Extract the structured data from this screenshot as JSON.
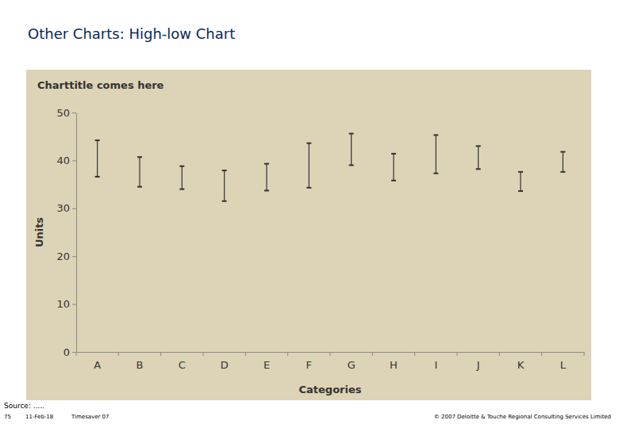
{
  "page": {
    "title": "Other Charts: High-low Chart",
    "source": "Source: .....",
    "page_number": "75",
    "date": "11-Feb-18",
    "series_name": "Timesaver 07",
    "copyright": "© 2007 Deloitte & Touche Regional Consulting Services Limited"
  },
  "chart_data": {
    "type": "high_low",
    "title": "Charttitle comes here",
    "x_label": "Categories",
    "y_label": "Units",
    "categories": [
      "A",
      "B",
      "C",
      "D",
      "E",
      "F",
      "G",
      "H",
      "I",
      "J",
      "K",
      "L"
    ],
    "high": [
      44.2,
      40.7,
      38.8,
      37.9,
      39.3,
      43.6,
      45.6,
      41.4,
      45.3,
      43.0,
      37.6,
      41.8
    ],
    "low": [
      36.6,
      34.5,
      34.0,
      31.5,
      33.7,
      34.3,
      39.0,
      35.8,
      37.3,
      38.2,
      33.6,
      37.6
    ],
    "color": "#333333",
    "ylim": [
      0,
      50
    ],
    "yticks": [
      0,
      10,
      20,
      30,
      40,
      50
    ],
    "grid": false
  }
}
